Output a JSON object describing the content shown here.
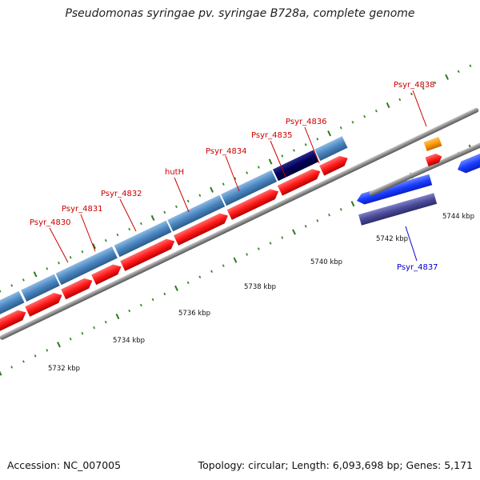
{
  "title": "Pseudomonas syringae pv. syringae B728a, complete genome",
  "footer": {
    "accession": "Accession: NC_007005",
    "summary": "Topology: circular; Length: 6,093,698 bp; Genes: 5,171"
  },
  "scale": {
    "unit": "kbp",
    "labels": [
      "5732 kbp",
      "5734 kbp",
      "5736 kbp",
      "5738 kbp",
      "5740 kbp",
      "5742 kbp",
      "5744 kbp"
    ]
  },
  "genes": [
    {
      "label": "Psyr_4830",
      "color": "#cc0000"
    },
    {
      "label": "Psyr_4831",
      "color": "#cc0000"
    },
    {
      "label": "Psyr_4832",
      "color": "#cc0000"
    },
    {
      "label": "hutH",
      "color": "#cc0000"
    },
    {
      "label": "Psyr_4834",
      "color": "#cc0000"
    },
    {
      "label": "Psyr_4835",
      "color": "#cc0000"
    },
    {
      "label": "Psyr_4836",
      "color": "#cc0000"
    },
    {
      "label": "Psyr_4837",
      "color": "#0000cc"
    },
    {
      "label": "Psyr_4838",
      "color": "#cc0000"
    }
  ],
  "colors": {
    "forward_cds": "#ff1a1a",
    "forward_gene": "#4a86c0",
    "highlight_gene": "#00005a",
    "reverse_cds": "#1a3dff",
    "reverse_gene": "#4a4a99",
    "rna": "#ff9900",
    "backbone": "#8c8c8c",
    "tick_major": "#2a7a1a",
    "tick_minor": "#3a8a2a"
  }
}
